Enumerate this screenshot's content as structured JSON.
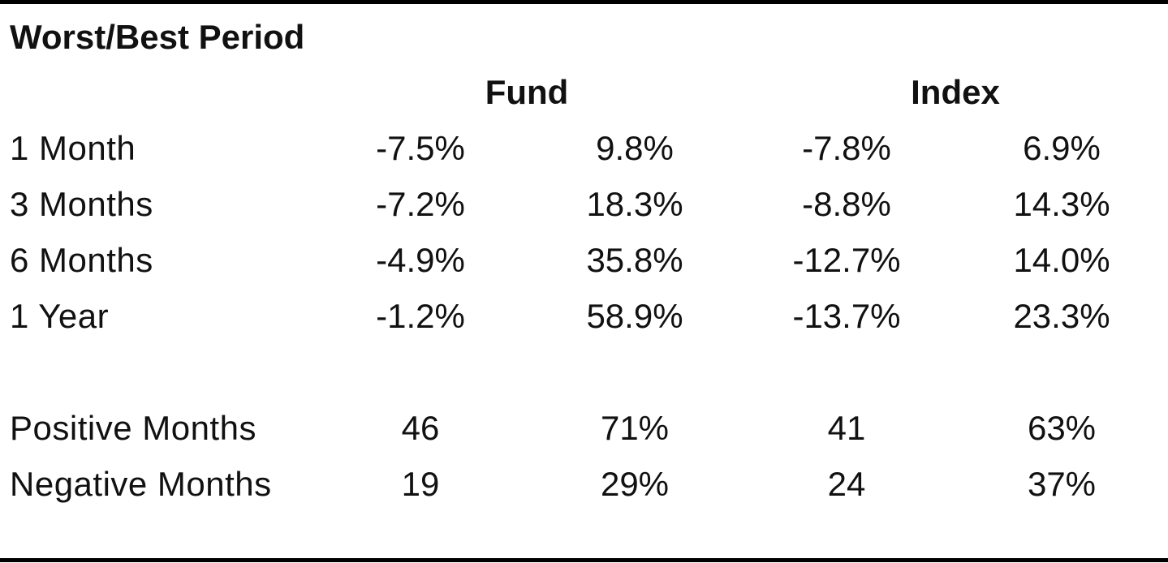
{
  "title": "Worst/Best Period",
  "group_headers": [
    "Fund",
    "Index"
  ],
  "period_rows": [
    {
      "label": "1 Month",
      "values": [
        "-7.5%",
        "9.8%",
        "-7.8%",
        "6.9%"
      ]
    },
    {
      "label": "3 Months",
      "values": [
        "-7.2%",
        "18.3%",
        "-8.8%",
        "14.3%"
      ]
    },
    {
      "label": "6 Months",
      "values": [
        "-4.9%",
        "35.8%",
        "-12.7%",
        "14.0%"
      ]
    },
    {
      "label": "1 Year",
      "values": [
        "-1.2%",
        "58.9%",
        "-13.7%",
        "23.3%"
      ]
    }
  ],
  "month_rows": [
    {
      "label": "Positive Months",
      "values": [
        "46",
        "71%",
        "41",
        "63%"
      ]
    },
    {
      "label": "Negative Months",
      "values": [
        "19",
        "29%",
        "24",
        "37%"
      ]
    }
  ]
}
